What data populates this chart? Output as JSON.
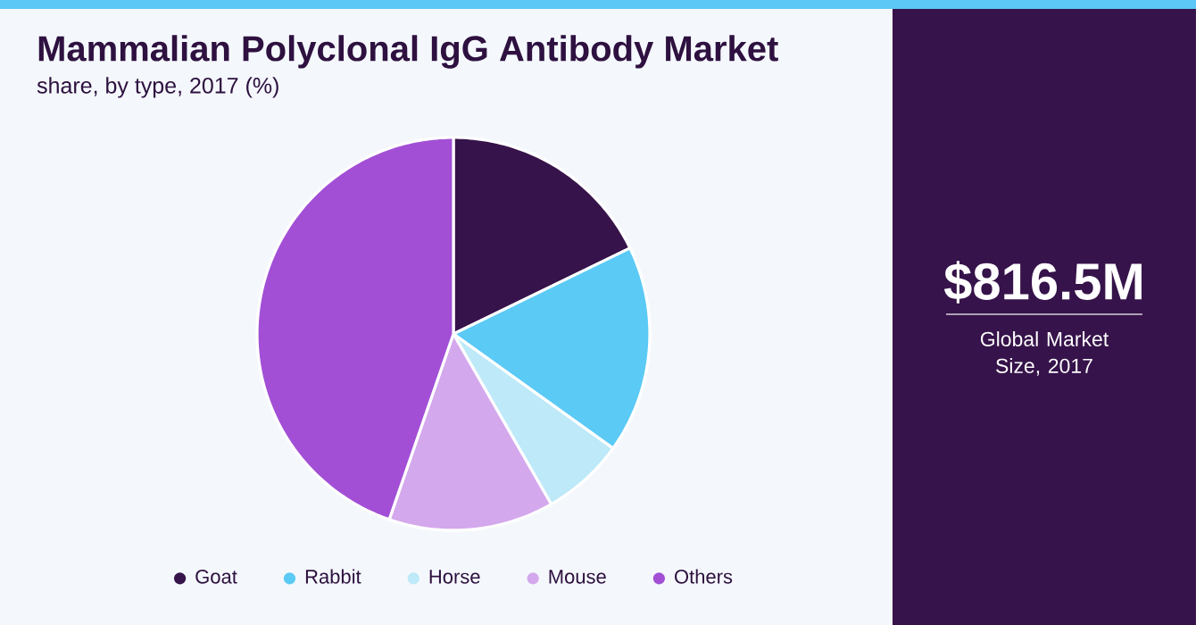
{
  "chart_data": {
    "type": "pie",
    "title": "Mammalian Polyclonal IgG Antibody Market",
    "subtitle": "share, by type, 2017 (%)",
    "categories": [
      "Goat",
      "Rabbit",
      "Horse",
      "Mouse",
      "Others"
    ],
    "values": [
      17.8,
      17.1,
      6.8,
      13.6,
      44.7
    ],
    "colors": [
      "#36134a",
      "#5bcaf5",
      "#bde9f8",
      "#d4a8ec",
      "#a24fd6"
    ],
    "legend": "bottom",
    "annotations": [
      "$816.5M",
      "Global Market Size, 2017"
    ]
  }
}
